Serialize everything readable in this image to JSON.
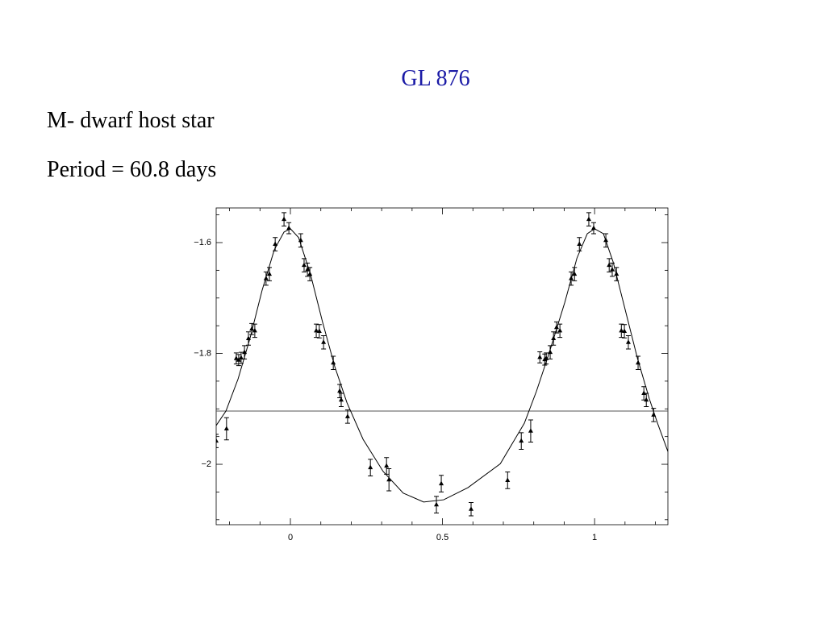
{
  "title": "GL 876",
  "lines": [
    "M- dwarf host star",
    "Period = 60.8 days"
  ],
  "chart_data": {
    "type": "scatter",
    "xlim": [
      -0.244,
      1.241
    ],
    "ylim": [
      -2.109,
      -1.5375
    ],
    "xticks": [
      0,
      0.5,
      1
    ],
    "yticks": [
      {
        "value": -1.6,
        "label": "−1.6"
      },
      {
        "value": -1.8,
        "label": "−1.8"
      },
      {
        "value": -2,
        "label": "−2"
      }
    ],
    "minor_xticks": [
      -0.2,
      -0.1,
      0.1,
      0.2,
      0.3,
      0.4,
      0.6,
      0.7,
      0.8,
      0.9,
      1.1,
      1.2
    ],
    "minor_yticks": [
      -1.55,
      -1.65,
      -1.7,
      -1.75,
      -1.85,
      -1.9,
      -1.95,
      -2.05,
      -2.1
    ],
    "reference_line": -1.904,
    "color": "#000000",
    "series": [
      {
        "marker": "triangle",
        "x": [
          -0.244,
          -0.21,
          -0.178,
          -0.17,
          -0.162,
          -0.151,
          -0.138,
          -0.127,
          -0.117,
          -0.08,
          -0.069,
          -0.05,
          -0.021,
          -0.005,
          0.034,
          0.045,
          0.056,
          0.064,
          0.085,
          0.095,
          0.109,
          0.141,
          0.162,
          0.167,
          0.188,
          0.263,
          0.316,
          0.324,
          0.48,
          0.496,
          0.594,
          0.714,
          0.759,
          0.79,
          0.82,
          0.836,
          0.841,
          0.854,
          0.865,
          0.875,
          0.886,
          0.923,
          0.934,
          0.95,
          0.981,
          0.997,
          1.037,
          1.048,
          1.058,
          1.072,
          1.088,
          1.098,
          1.111,
          1.143,
          1.162,
          1.17,
          1.194
        ],
        "values": [
          -1.958,
          -1.936,
          -1.809,
          -1.812,
          -1.808,
          -1.798,
          -1.773,
          -1.756,
          -1.759,
          -1.665,
          -1.657,
          -1.603,
          -1.558,
          -1.574,
          -1.596,
          -1.641,
          -1.649,
          -1.657,
          -1.759,
          -1.76,
          -1.78,
          -1.817,
          -1.868,
          -1.884,
          -1.914,
          -2.006,
          -2.003,
          -2.028,
          -2.073,
          -2.035,
          -2.081,
          -2.029,
          -1.958,
          -1.94,
          -1.807,
          -1.811,
          -1.809,
          -1.798,
          -1.773,
          -1.753,
          -1.759,
          -1.665,
          -1.657,
          -1.603,
          -1.558,
          -1.574,
          -1.596,
          -1.641,
          -1.649,
          -1.657,
          -1.759,
          -1.76,
          -1.78,
          -1.817,
          -1.872,
          -1.884,
          -1.911
        ],
        "errors": [
          0.012,
          0.02,
          0.01,
          0.01,
          0.01,
          0.012,
          0.012,
          0.01,
          0.012,
          0.012,
          0.012,
          0.012,
          0.012,
          0.01,
          0.012,
          0.012,
          0.012,
          0.012,
          0.012,
          0.012,
          0.012,
          0.012,
          0.012,
          0.012,
          0.012,
          0.015,
          0.015,
          0.02,
          0.015,
          0.015,
          0.012,
          0.015,
          0.015,
          0.02,
          0.01,
          0.01,
          0.01,
          0.012,
          0.012,
          0.01,
          0.012,
          0.012,
          0.012,
          0.012,
          0.012,
          0.01,
          0.012,
          0.012,
          0.012,
          0.012,
          0.012,
          0.012,
          0.012,
          0.012,
          0.012,
          0.012,
          0.012
        ]
      }
    ],
    "fit": {
      "x": [
        -0.244,
        -0.212,
        -0.172,
        -0.133,
        -0.093,
        -0.053,
        -0.021,
        0,
        0.027,
        0.066,
        0.106,
        0.146,
        0.186,
        0.239,
        0.305,
        0.371,
        0.438,
        0.504,
        0.584,
        0.69,
        0.769,
        0.809,
        0.849,
        0.902,
        0.942,
        0.976,
        1,
        1.029,
        1.061,
        1.101,
        1.141,
        1.18,
        1.207,
        1.241
      ],
      "values": [
        -1.93,
        -1.904,
        -1.846,
        -1.773,
        -1.686,
        -1.613,
        -1.581,
        -1.575,
        -1.591,
        -1.657,
        -1.744,
        -1.824,
        -1.889,
        -1.955,
        -2.013,
        -2.052,
        -2.068,
        -2.064,
        -2.042,
        -1.999,
        -1.926,
        -1.868,
        -1.802,
        -1.708,
        -1.628,
        -1.584,
        -1.575,
        -1.584,
        -1.635,
        -1.722,
        -1.809,
        -1.882,
        -1.926,
        -1.977
      ]
    }
  }
}
